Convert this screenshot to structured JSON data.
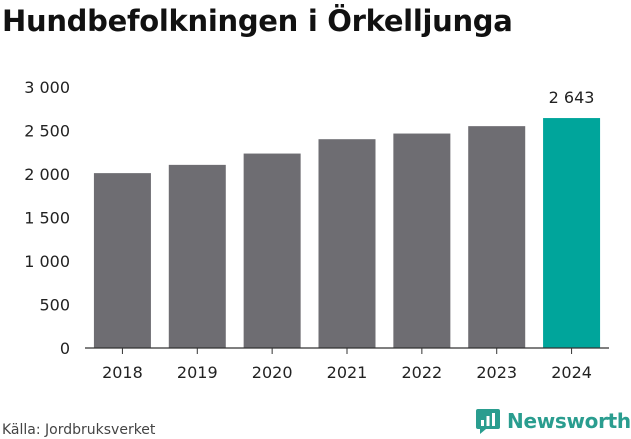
{
  "title": "Hundbefolkningen i Örkelljunga",
  "source": "Källa: Jordbruksverket",
  "brand": {
    "name": "Newsworthy",
    "logo_icon": "newsworthy-logo-icon",
    "color": "#2a9d8f"
  },
  "chart_data": {
    "type": "bar",
    "categories": [
      "2018",
      "2019",
      "2020",
      "2021",
      "2022",
      "2023",
      "2024"
    ],
    "values": [
      2010,
      2105,
      2235,
      2400,
      2465,
      2550,
      2643
    ],
    "highlight_index": 6,
    "highlight_label": "2 643",
    "ylim": [
      0,
      3000
    ],
    "yticks": [
      0,
      500,
      1000,
      1500,
      2000,
      2500,
      3000
    ],
    "ytick_labels": [
      "0",
      "500",
      "1 000",
      "1 500",
      "2 000",
      "2 500",
      "3 000"
    ],
    "grid": false,
    "colors": {
      "bar": "#6e6d72",
      "highlight": "#00a59b",
      "axis": "#333333"
    }
  }
}
